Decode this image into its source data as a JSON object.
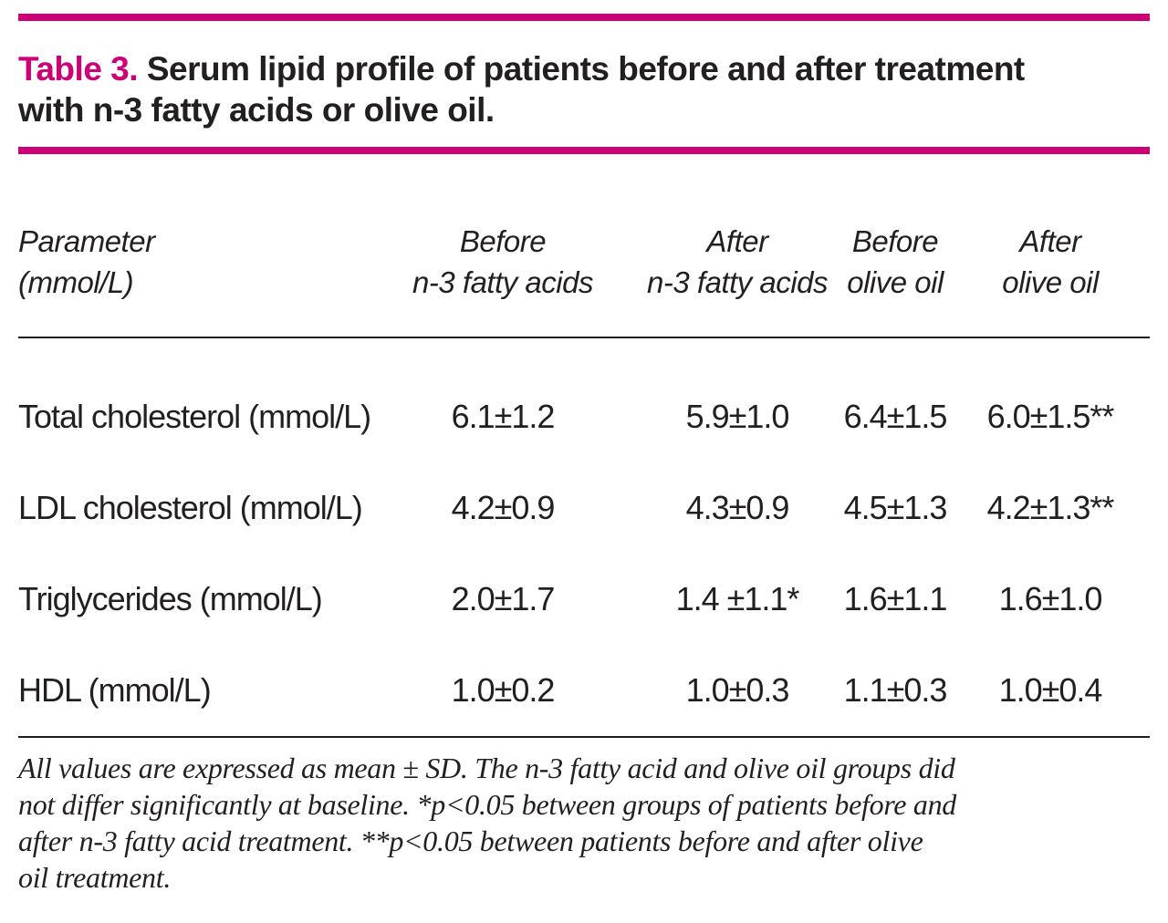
{
  "accent_color": "#cc0077",
  "title": {
    "label": "Table 3.",
    "line1": "Serum lipid profile of patients before and after treatment",
    "line2": "with n-3 fatty acids or olive oil."
  },
  "table": {
    "headers": [
      {
        "line1": "Parameter",
        "line2": "(mmol/L)"
      },
      {
        "line1": "Before",
        "line2": "n-3 fatty acids"
      },
      {
        "line1": "After",
        "line2": "n-3 fatty acids"
      },
      {
        "line1": "Before",
        "line2": "olive oil"
      },
      {
        "line1": "After",
        "line2": "olive oil"
      }
    ],
    "rows": [
      {
        "label": "Total cholesterol (mmol/L)",
        "values": [
          "6.1±1.2",
          "5.9±1.0",
          "6.4±1.5",
          "6.0±1.5**"
        ]
      },
      {
        "label": "LDL cholesterol (mmol/L)",
        "values": [
          "4.2±0.9",
          "4.3±0.9",
          "4.5±1.3",
          "4.2±1.3**"
        ]
      },
      {
        "label": "Triglycerides (mmol/L)",
        "values": [
          "2.0±1.7",
          "1.4 ±1.1*",
          "1.6±1.1",
          "1.6±1.0"
        ]
      },
      {
        "label": "HDL (mmol/L)",
        "values": [
          "1.0±0.2",
          "1.0±0.3",
          "1.1±0.3",
          "1.0±0.4"
        ]
      }
    ]
  },
  "footnote": {
    "line1": "All values are expressed as mean ± SD. The n-3 fatty acid and olive oil groups did",
    "line2": "not differ significantly at baseline. *p<0.05 between groups of patients before and",
    "line3": "after n-3 fatty acid treatment. **p<0.05 between patients before and after olive",
    "line4": "oil treatment."
  }
}
